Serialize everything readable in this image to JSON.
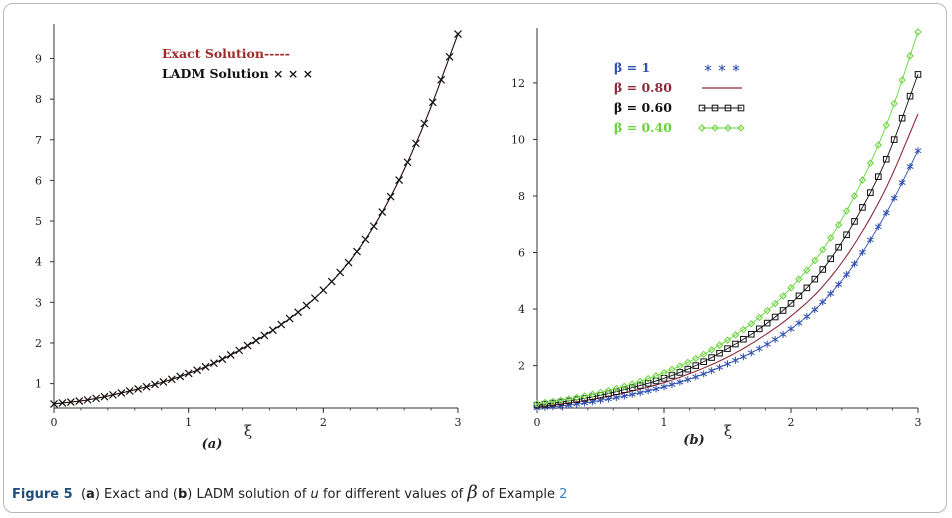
{
  "caption": {
    "figure_label": "Figure 5",
    "open_a": "(",
    "a_letter": "a",
    "a_text": ") Exact and (",
    "b_letter": "b",
    "b_text": ") LADM solution of",
    "var_u": "u",
    "mid_text": "for different values of",
    "beta_symbol": "β",
    "tail_text": "of Example",
    "example_ref": "2"
  },
  "chart_data": [
    {
      "type": "line",
      "panel_label": "(a)",
      "xlabel": "ξ",
      "ylabel": "",
      "xlim": [
        0,
        3
      ],
      "ylim": [
        0.4,
        9.75
      ],
      "xticks": [
        "0",
        "1",
        "2",
        "3"
      ],
      "yticks": [
        "1",
        "2",
        "3",
        "4",
        "5",
        "6",
        "7",
        "8",
        "9"
      ],
      "x": [
        0,
        0.25,
        0.5,
        0.75,
        1.0,
        1.25,
        1.5,
        1.75,
        2.0,
        2.25,
        2.5,
        2.75,
        3.0
      ],
      "series": [
        {
          "name": "Exact Solution-----",
          "color": "#b03030",
          "marker": "line",
          "values": [
            0.5,
            0.6,
            0.77,
            0.98,
            1.25,
            1.6,
            2.06,
            2.6,
            3.3,
            4.25,
            5.6,
            7.4,
            9.6
          ]
        },
        {
          "name": "LADM Solution × × ×",
          "color": "#111111",
          "marker": "cross",
          "values": [
            0.5,
            0.6,
            0.77,
            0.98,
            1.25,
            1.6,
            2.06,
            2.6,
            3.3,
            4.25,
            5.6,
            7.4,
            9.6
          ]
        }
      ],
      "legend_position": "top-center",
      "grid": false
    },
    {
      "type": "line",
      "panel_label": "(b)",
      "xlabel": "ξ",
      "ylabel": "",
      "xlim": [
        0,
        3
      ],
      "ylim": [
        0.5,
        13.8
      ],
      "xticks": [
        "0",
        "1",
        "2",
        "3"
      ],
      "yticks": [
        "2",
        "4",
        "6",
        "8",
        "10",
        "12"
      ],
      "x": [
        0,
        0.25,
        0.5,
        0.75,
        1.0,
        1.25,
        1.5,
        1.75,
        2.0,
        2.25,
        2.5,
        2.75,
        3.0
      ],
      "series": [
        {
          "name": "β = 1",
          "color": "#3050b0",
          "marker": "star",
          "values": [
            0.5,
            0.6,
            0.77,
            0.98,
            1.25,
            1.6,
            2.06,
            2.6,
            3.3,
            4.25,
            5.6,
            7.4,
            9.6
          ]
        },
        {
          "name": "β = 0.80",
          "color": "#8a2a3a",
          "marker": "line",
          "values": [
            0.55,
            0.68,
            0.86,
            1.1,
            1.4,
            1.8,
            2.3,
            2.95,
            3.75,
            4.8,
            6.3,
            8.3,
            10.9
          ]
        },
        {
          "name": "β = 0.60",
          "color": "#111111",
          "marker": "square",
          "values": [
            0.6,
            0.75,
            0.95,
            1.22,
            1.55,
            2.0,
            2.6,
            3.3,
            4.2,
            5.4,
            7.1,
            9.3,
            12.3
          ]
        },
        {
          "name": "β = 0.40",
          "color": "#66d43a",
          "marker": "diamond",
          "values": [
            0.65,
            0.82,
            1.05,
            1.35,
            1.75,
            2.25,
            2.9,
            3.7,
            4.75,
            6.1,
            8.0,
            10.5,
            13.8
          ]
        }
      ],
      "legend_position": "top-left",
      "grid": false
    }
  ]
}
